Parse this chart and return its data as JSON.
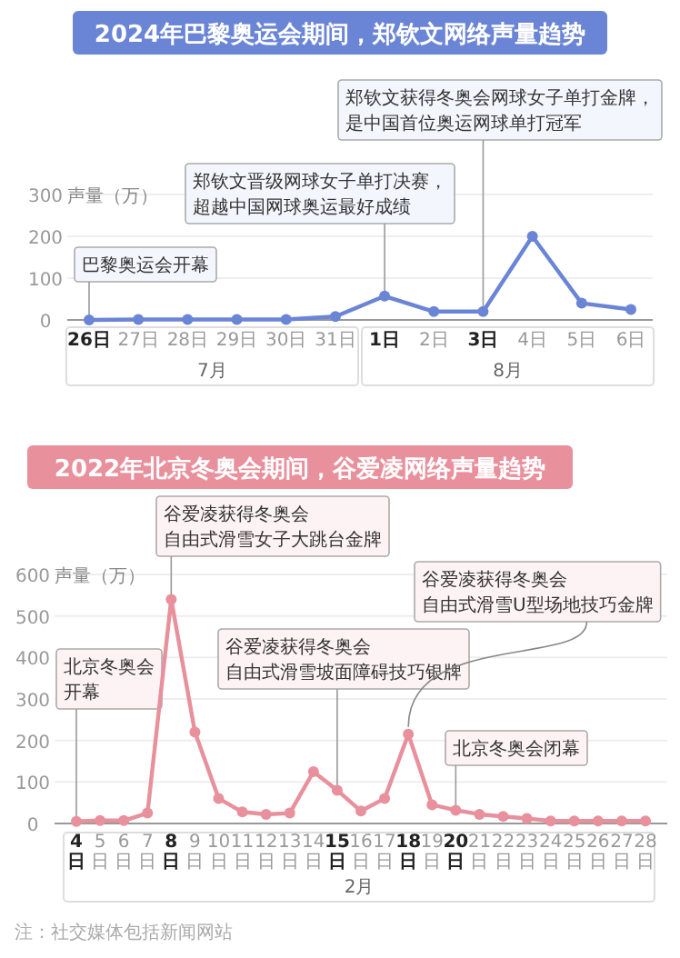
{
  "chart_data": [
    {
      "type": "line",
      "title": "2024年巴黎奥运会期间，郑钦文网络声量趋势",
      "ylabel": "声量（万）",
      "categories": [
        "26日",
        "27日",
        "28日",
        "29日",
        "30日",
        "31日",
        "1日",
        "2日",
        "3日",
        "4日",
        "5日",
        "6日"
      ],
      "values": [
        0,
        1,
        1,
        1,
        1,
        8,
        57,
        20,
        20,
        200,
        40,
        25
      ],
      "color": "#6b85d6",
      "ylim": [
        0,
        300
      ],
      "yticks": [
        0,
        100,
        200,
        300
      ],
      "grid": "y",
      "marker": "circle",
      "annotations": [
        {
          "text": "巴黎奥运会开幕",
          "x": "26日",
          "y": 0
        },
        {
          "text": "郑钦文晋级网球女子单打决赛，超越中国网球奥运最好成绩",
          "x": "1日",
          "y": 57
        },
        {
          "text": "郑钦文获得冬奥会网球女子单打金牌，是中国首位奥运网球单打冠军",
          "x": "3日",
          "y": 20
        },
        "7月",
        "8月"
      ]
    },
    {
      "type": "line",
      "title": "2022年北京冬奥会期间，谷爱凌网络声量趋势",
      "ylabel": "声量（万）",
      "categories": [
        "4日",
        "5日",
        "6日",
        "7日",
        "8日",
        "9日",
        "10日",
        "11日",
        "12日",
        "13日",
        "14日",
        "15日",
        "16日",
        "17日",
        "18日",
        "19日",
        "20日",
        "21日",
        "22日",
        "23日",
        "24日",
        "25日",
        "26日",
        "27日",
        "28日"
      ],
      "values": [
        5,
        7,
        7,
        25,
        540,
        220,
        60,
        28,
        22,
        25,
        125,
        80,
        30,
        60,
        215,
        45,
        32,
        22,
        17,
        12,
        6,
        6,
        6,
        6,
        6
      ],
      "color": "#e8909c",
      "ylim": [
        0,
        600
      ],
      "yticks": [
        0,
        100,
        200,
        300,
        400,
        500,
        600
      ],
      "grid": "y",
      "marker": "circle",
      "annotations": [
        {
          "text": "北京冬奥会开幕",
          "x": "4日",
          "y": 5
        },
        {
          "text": "谷爱凌获得冬奥会自由式滑雪女子大跳台金牌",
          "x": "8日",
          "y": 540
        },
        {
          "text": "谷爱凌获得冬奥会自由式滑雪坡面障碍技巧银牌",
          "x": "15日",
          "y": 80
        },
        {
          "text": "谷爱凌获得冬奥会自由式滑雪U型场地技巧金牌",
          "x": "18日",
          "y": 215
        },
        {
          "text": "北京冬奥会闭幕",
          "x": "20日",
          "y": 32
        },
        "2月",
        "注：社交媒体包括新闻网站"
      ]
    }
  ]
}
